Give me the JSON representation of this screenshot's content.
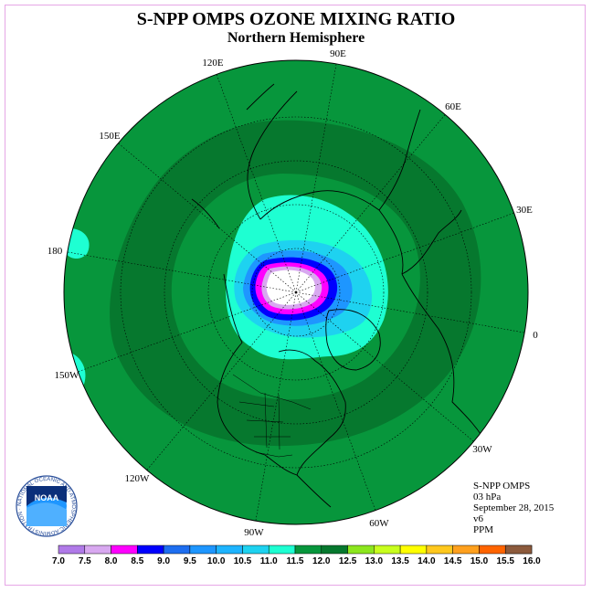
{
  "header": {
    "title": "S-NPP OMPS OZONE MIXING RATIO",
    "subtitle": "Northern Hemisphere"
  },
  "longitude_labels": [
    "90E",
    "60E",
    "30E",
    "0",
    "30W",
    "60W",
    "90W",
    "120W",
    "150W",
    "180",
    "150E",
    "120E"
  ],
  "info": {
    "instrument": "S-NPP OMPS",
    "level": "03 hPa",
    "date": "September 28, 2015",
    "version": "v6",
    "units": "PPM"
  },
  "colorbar": {
    "labels": [
      "7.0",
      "7.5",
      "8.0",
      "8.5",
      "9.0",
      "9.5",
      "10.0",
      "10.5",
      "11.0",
      "11.5",
      "12.0",
      "12.5",
      "13.0",
      "13.5",
      "14.0",
      "14.5",
      "15.0",
      "15.5",
      "16.0"
    ],
    "colors": [
      "#b07ae8",
      "#d8a8f0",
      "#ff00ff",
      "#0000ff",
      "#1e6ef0",
      "#1e96ff",
      "#1eb4ff",
      "#1ed2f0",
      "#1effd2",
      "#07963c",
      "#06782e",
      "#8ce61e",
      "#c8ff1e",
      "#ffff00",
      "#ffc81e",
      "#ffa01e",
      "#ff6400",
      "#ff0000",
      "#8c5a3c"
    ]
  },
  "map_colors": {
    "ocean_level": "#07963c",
    "dark_band": "#06782e",
    "cyan": "#1effd2",
    "light_blue": "#1ed2f0",
    "mid_blue": "#1e96ff",
    "blue": "#0000ff",
    "magenta": "#ff00ff",
    "lilac": "#d8a8f0",
    "white_core": "#ffffff"
  },
  "logo": {
    "name": "NOAA",
    "ring_text": "NATIONAL OCEANIC AND ATMOSPHERIC ADMINISTRATION · U.S. DEPARTMENT OF COMMERCE"
  }
}
